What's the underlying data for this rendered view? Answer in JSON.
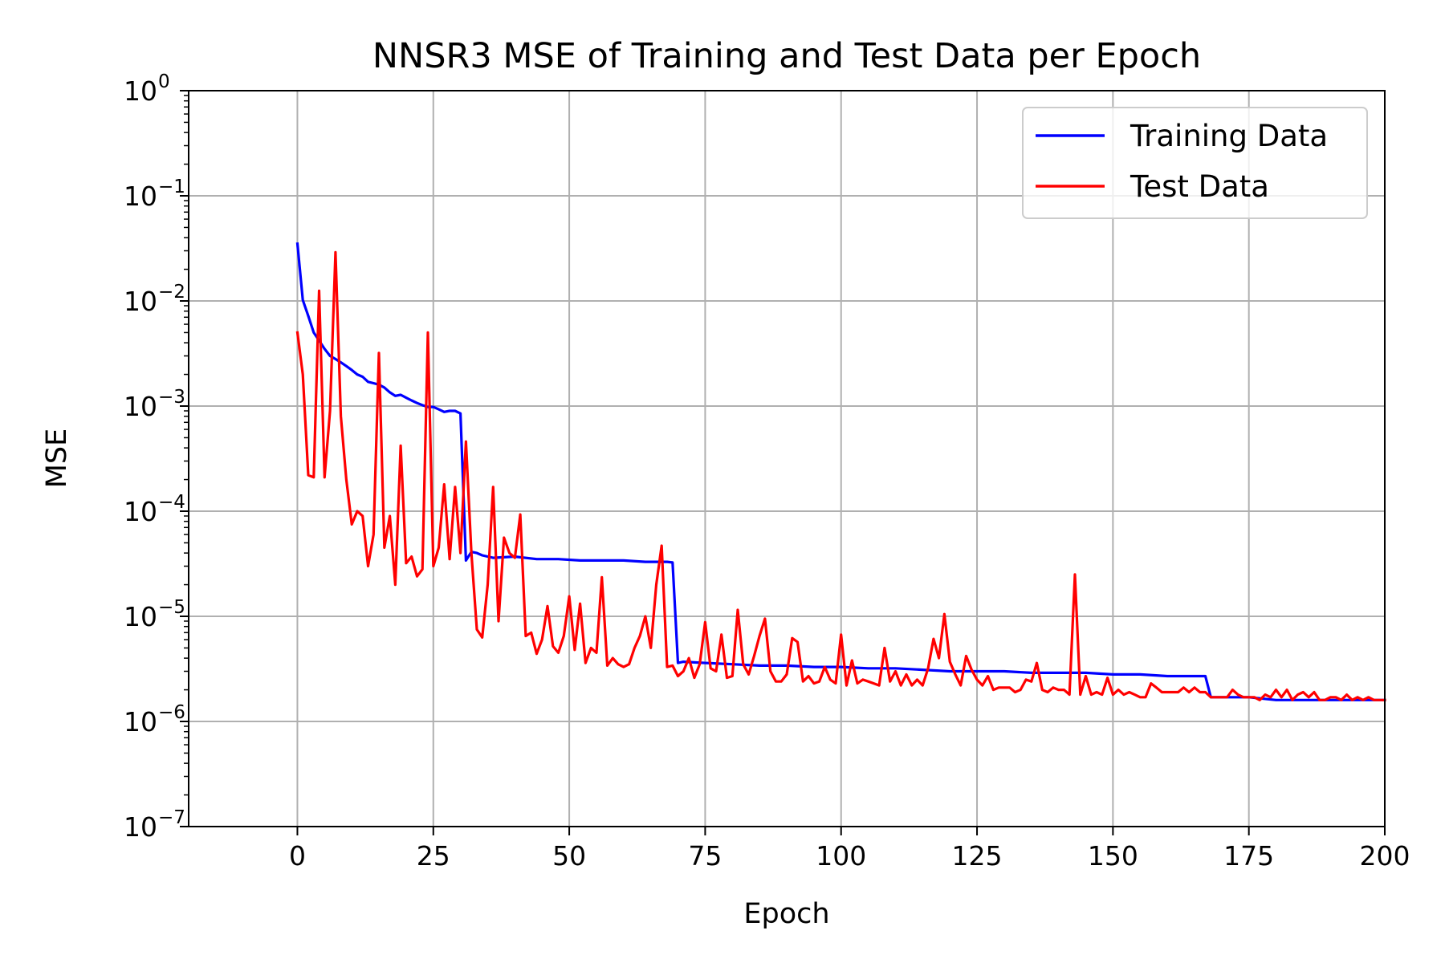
{
  "chart_data": {
    "type": "line",
    "title": "NNSR3 MSE of Training and Test Data per Epoch",
    "xlabel": "Epoch",
    "ylabel": "MSE",
    "xlim": [
      -20,
      200
    ],
    "ylim": [
      1e-07,
      1
    ],
    "yscale": "log",
    "grid": true,
    "legend_position": "top-right",
    "x_ticks": [
      {
        "value": 0,
        "label": "0"
      },
      {
        "value": 25,
        "label": "25"
      },
      {
        "value": 50,
        "label": "50"
      },
      {
        "value": 75,
        "label": "75"
      },
      {
        "value": 100,
        "label": "100"
      },
      {
        "value": 125,
        "label": "125"
      },
      {
        "value": 150,
        "label": "150"
      },
      {
        "value": 175,
        "label": "175"
      },
      {
        "value": 200,
        "label": "200"
      }
    ],
    "y_ticks": [
      {
        "value": 1,
        "base": "10",
        "exp": "0"
      },
      {
        "value": 0.1,
        "base": "10",
        "exp": "−1"
      },
      {
        "value": 0.01,
        "base": "10",
        "exp": "−2"
      },
      {
        "value": 0.001,
        "base": "10",
        "exp": "−3"
      },
      {
        "value": 0.0001,
        "base": "10",
        "exp": "−4"
      },
      {
        "value": 1e-05,
        "base": "10",
        "exp": "−5"
      },
      {
        "value": 1e-06,
        "base": "10",
        "exp": "−6"
      },
      {
        "value": 1e-07,
        "base": "10",
        "exp": "−7"
      }
    ],
    "series": [
      {
        "name": "Training Data",
        "color": "#0000ff",
        "points": [
          [
            0,
            0.035
          ],
          [
            1,
            0.0102
          ],
          [
            2,
            0.0072
          ],
          [
            3,
            0.005
          ],
          [
            4,
            0.0042
          ],
          [
            5,
            0.0035
          ],
          [
            6,
            0.003
          ],
          [
            7,
            0.0028
          ],
          [
            8,
            0.0026
          ],
          [
            9,
            0.0024
          ],
          [
            10,
            0.0022
          ],
          [
            11,
            0.002
          ],
          [
            12,
            0.0019
          ],
          [
            13,
            0.0017
          ],
          [
            14,
            0.00165
          ],
          [
            15,
            0.0016
          ],
          [
            16,
            0.0015
          ],
          [
            17,
            0.00135
          ],
          [
            18,
            0.00125
          ],
          [
            19,
            0.00128
          ],
          [
            20,
            0.0012
          ],
          [
            21,
            0.00113
          ],
          [
            22,
            0.00107
          ],
          [
            23,
            0.00102
          ],
          [
            24,
            0.00098
          ],
          [
            25,
            0.00098
          ],
          [
            26,
            0.00093
          ],
          [
            27,
            0.00088
          ],
          [
            28,
            0.0009
          ],
          [
            29,
            0.0009
          ],
          [
            30,
            0.00085
          ],
          [
            31,
            3.4e-05
          ],
          [
            32,
            4.1e-05
          ],
          [
            33,
            4e-05
          ],
          [
            34,
            3.8e-05
          ],
          [
            36,
            3.6e-05
          ],
          [
            40,
            3.7e-05
          ],
          [
            44,
            3.5e-05
          ],
          [
            48,
            3.5e-05
          ],
          [
            52,
            3.4e-05
          ],
          [
            56,
            3.4e-05
          ],
          [
            60,
            3.4e-05
          ],
          [
            64,
            3.3e-05
          ],
          [
            68,
            3.3e-05
          ],
          [
            69,
            3.25e-05
          ],
          [
            70,
            3.6e-06
          ],
          [
            71,
            3.7e-06
          ],
          [
            75,
            3.6e-06
          ],
          [
            80,
            3.5e-06
          ],
          [
            85,
            3.4e-06
          ],
          [
            90,
            3.4e-06
          ],
          [
            95,
            3.3e-06
          ],
          [
            100,
            3.3e-06
          ],
          [
            105,
            3.2e-06
          ],
          [
            110,
            3.2e-06
          ],
          [
            115,
            3.1e-06
          ],
          [
            120,
            3e-06
          ],
          [
            125,
            3e-06
          ],
          [
            130,
            3e-06
          ],
          [
            135,
            2.9e-06
          ],
          [
            140,
            2.9e-06
          ],
          [
            145,
            2.9e-06
          ],
          [
            150,
            2.8e-06
          ],
          [
            155,
            2.8e-06
          ],
          [
            160,
            2.7e-06
          ],
          [
            165,
            2.7e-06
          ],
          [
            167,
            2.7e-06
          ],
          [
            168,
            1.7e-06
          ],
          [
            175,
            1.7e-06
          ],
          [
            180,
            1.6e-06
          ],
          [
            190,
            1.6e-06
          ],
          [
            200,
            1.6e-06
          ]
        ]
      },
      {
        "name": "Test Data",
        "color": "#ff0000",
        "points": [
          [
            0,
            0.005
          ],
          [
            1,
            0.002
          ],
          [
            2,
            0.00022
          ],
          [
            3,
            0.00021
          ],
          [
            4,
            0.0125
          ],
          [
            5,
            0.00021
          ],
          [
            6,
            0.0009
          ],
          [
            7,
            0.029
          ],
          [
            8,
            0.0008
          ],
          [
            9,
            0.0002
          ],
          [
            10,
            7.5e-05
          ],
          [
            11,
            0.0001
          ],
          [
            12,
            9e-05
          ],
          [
            13,
            3e-05
          ],
          [
            14,
            6e-05
          ],
          [
            15,
            0.0032
          ],
          [
            16,
            4.5e-05
          ],
          [
            17,
            9e-05
          ],
          [
            18,
            2e-05
          ],
          [
            19,
            0.00042
          ],
          [
            20,
            3.2e-05
          ],
          [
            21,
            3.7e-05
          ],
          [
            22,
            2.4e-05
          ],
          [
            23,
            2.8e-05
          ],
          [
            24,
            0.005
          ],
          [
            25,
            3e-05
          ],
          [
            26,
            4.5e-05
          ],
          [
            27,
            0.00018
          ],
          [
            28,
            3.5e-05
          ],
          [
            29,
            0.00017
          ],
          [
            30,
            4e-05
          ],
          [
            31,
            0.00046
          ],
          [
            32,
            4e-05
          ],
          [
            33,
            7.5e-06
          ],
          [
            34,
            6.3e-06
          ],
          [
            35,
            2e-05
          ],
          [
            36,
            0.00017
          ],
          [
            37,
            9e-06
          ],
          [
            38,
            5.6e-05
          ],
          [
            39,
            4e-05
          ],
          [
            40,
            3.6e-05
          ],
          [
            41,
            9.3e-05
          ],
          [
            42,
            6.5e-06
          ],
          [
            43,
            7e-06
          ],
          [
            44,
            4.4e-06
          ],
          [
            45,
            6e-06
          ],
          [
            46,
            1.25e-05
          ],
          [
            47,
            5.2e-06
          ],
          [
            48,
            4.5e-06
          ],
          [
            49,
            6.5e-06
          ],
          [
            50,
            1.55e-05
          ],
          [
            51,
            4.8e-06
          ],
          [
            52,
            1.32e-05
          ],
          [
            53,
            3.6e-06
          ],
          [
            54,
            5e-06
          ],
          [
            55,
            4.5e-06
          ],
          [
            56,
            2.35e-05
          ],
          [
            57,
            3.4e-06
          ],
          [
            58,
            4e-06
          ],
          [
            59,
            3.5e-06
          ],
          [
            60,
            3.3e-06
          ],
          [
            61,
            3.5e-06
          ],
          [
            62,
            5e-06
          ],
          [
            63,
            6.5e-06
          ],
          [
            64,
            1e-05
          ],
          [
            65,
            5e-06
          ],
          [
            66,
            2e-05
          ],
          [
            67,
            4.7e-05
          ],
          [
            68,
            3.3e-06
          ],
          [
            69,
            3.4e-06
          ],
          [
            70,
            2.7e-06
          ],
          [
            71,
            3e-06
          ],
          [
            72,
            4e-06
          ],
          [
            73,
            2.6e-06
          ],
          [
            74,
            3.5e-06
          ],
          [
            75,
            8.8e-06
          ],
          [
            76,
            3.2e-06
          ],
          [
            77,
            3e-06
          ],
          [
            78,
            6.7e-06
          ],
          [
            79,
            2.6e-06
          ],
          [
            80,
            2.7e-06
          ],
          [
            81,
            1.15e-05
          ],
          [
            82,
            3.5e-06
          ],
          [
            83,
            2.8e-06
          ],
          [
            84,
            4.2e-06
          ],
          [
            85,
            6.5e-06
          ],
          [
            86,
            9.5e-06
          ],
          [
            87,
            3e-06
          ],
          [
            88,
            2.4e-06
          ],
          [
            89,
            2.4e-06
          ],
          [
            90,
            2.8e-06
          ],
          [
            91,
            6.2e-06
          ],
          [
            92,
            5.7e-06
          ],
          [
            93,
            2.4e-06
          ],
          [
            94,
            2.7e-06
          ],
          [
            95,
            2.3e-06
          ],
          [
            96,
            2.4e-06
          ],
          [
            97,
            3.3e-06
          ],
          [
            98,
            2.5e-06
          ],
          [
            99,
            2.3e-06
          ],
          [
            100,
            6.7e-06
          ],
          [
            101,
            2.2e-06
          ],
          [
            102,
            3.8e-06
          ],
          [
            103,
            2.3e-06
          ],
          [
            104,
            2.5e-06
          ],
          [
            105,
            2.4e-06
          ],
          [
            106,
            2.3e-06
          ],
          [
            107,
            2.2e-06
          ],
          [
            108,
            5e-06
          ],
          [
            109,
            2.4e-06
          ],
          [
            110,
            3e-06
          ],
          [
            111,
            2.2e-06
          ],
          [
            112,
            2.8e-06
          ],
          [
            113,
            2.2e-06
          ],
          [
            114,
            2.5e-06
          ],
          [
            115,
            2.2e-06
          ],
          [
            116,
            3.2e-06
          ],
          [
            117,
            6.1e-06
          ],
          [
            118,
            4e-06
          ],
          [
            119,
            1.05e-05
          ],
          [
            120,
            3.7e-06
          ],
          [
            121,
            2.8e-06
          ],
          [
            122,
            2.2e-06
          ],
          [
            123,
            4.2e-06
          ],
          [
            124,
            3.1e-06
          ],
          [
            125,
            2.5e-06
          ],
          [
            126,
            2.2e-06
          ],
          [
            127,
            2.7e-06
          ],
          [
            128,
            2e-06
          ],
          [
            129,
            2.1e-06
          ],
          [
            130,
            2.1e-06
          ],
          [
            131,
            2.1e-06
          ],
          [
            132,
            1.9e-06
          ],
          [
            133,
            2e-06
          ],
          [
            134,
            2.5e-06
          ],
          [
            135,
            2.4e-06
          ],
          [
            136,
            3.6e-06
          ],
          [
            137,
            2e-06
          ],
          [
            138,
            1.9e-06
          ],
          [
            139,
            2.1e-06
          ],
          [
            140,
            2e-06
          ],
          [
            141,
            2e-06
          ],
          [
            142,
            1.8e-06
          ],
          [
            143,
            2.5e-05
          ],
          [
            144,
            1.8e-06
          ],
          [
            145,
            2.7e-06
          ],
          [
            146,
            1.8e-06
          ],
          [
            147,
            1.9e-06
          ],
          [
            148,
            1.8e-06
          ],
          [
            149,
            2.6e-06
          ],
          [
            150,
            1.8e-06
          ],
          [
            151,
            2e-06
          ],
          [
            152,
            1.8e-06
          ],
          [
            153,
            1.9e-06
          ],
          [
            154,
            1.8e-06
          ],
          [
            155,
            1.7e-06
          ],
          [
            156,
            1.7e-06
          ],
          [
            157,
            2.3e-06
          ],
          [
            158,
            2.1e-06
          ],
          [
            159,
            1.9e-06
          ],
          [
            160,
            1.9e-06
          ],
          [
            161,
            1.9e-06
          ],
          [
            162,
            1.9e-06
          ],
          [
            163,
            2.1e-06
          ],
          [
            164,
            1.9e-06
          ],
          [
            165,
            2.1e-06
          ],
          [
            166,
            1.9e-06
          ],
          [
            167,
            1.9e-06
          ],
          [
            168,
            1.7e-06
          ],
          [
            169,
            1.7e-06
          ],
          [
            170,
            1.7e-06
          ],
          [
            171,
            1.7e-06
          ],
          [
            172,
            2e-06
          ],
          [
            173,
            1.8e-06
          ],
          [
            174,
            1.7e-06
          ],
          [
            175,
            1.7e-06
          ],
          [
            176,
            1.7e-06
          ],
          [
            177,
            1.6e-06
          ],
          [
            178,
            1.8e-06
          ],
          [
            179,
            1.7e-06
          ],
          [
            180,
            2e-06
          ],
          [
            181,
            1.7e-06
          ],
          [
            182,
            2e-06
          ],
          [
            183,
            1.6e-06
          ],
          [
            184,
            1.8e-06
          ],
          [
            185,
            1.9e-06
          ],
          [
            186,
            1.7e-06
          ],
          [
            187,
            1.9e-06
          ],
          [
            188,
            1.6e-06
          ],
          [
            189,
            1.6e-06
          ],
          [
            190,
            1.7e-06
          ],
          [
            191,
            1.7e-06
          ],
          [
            192,
            1.6e-06
          ],
          [
            193,
            1.8e-06
          ],
          [
            194,
            1.6e-06
          ],
          [
            195,
            1.7e-06
          ],
          [
            196,
            1.6e-06
          ],
          [
            197,
            1.7e-06
          ],
          [
            198,
            1.6e-06
          ],
          [
            199,
            1.6e-06
          ],
          [
            200,
            1.6e-06
          ]
        ]
      }
    ]
  }
}
